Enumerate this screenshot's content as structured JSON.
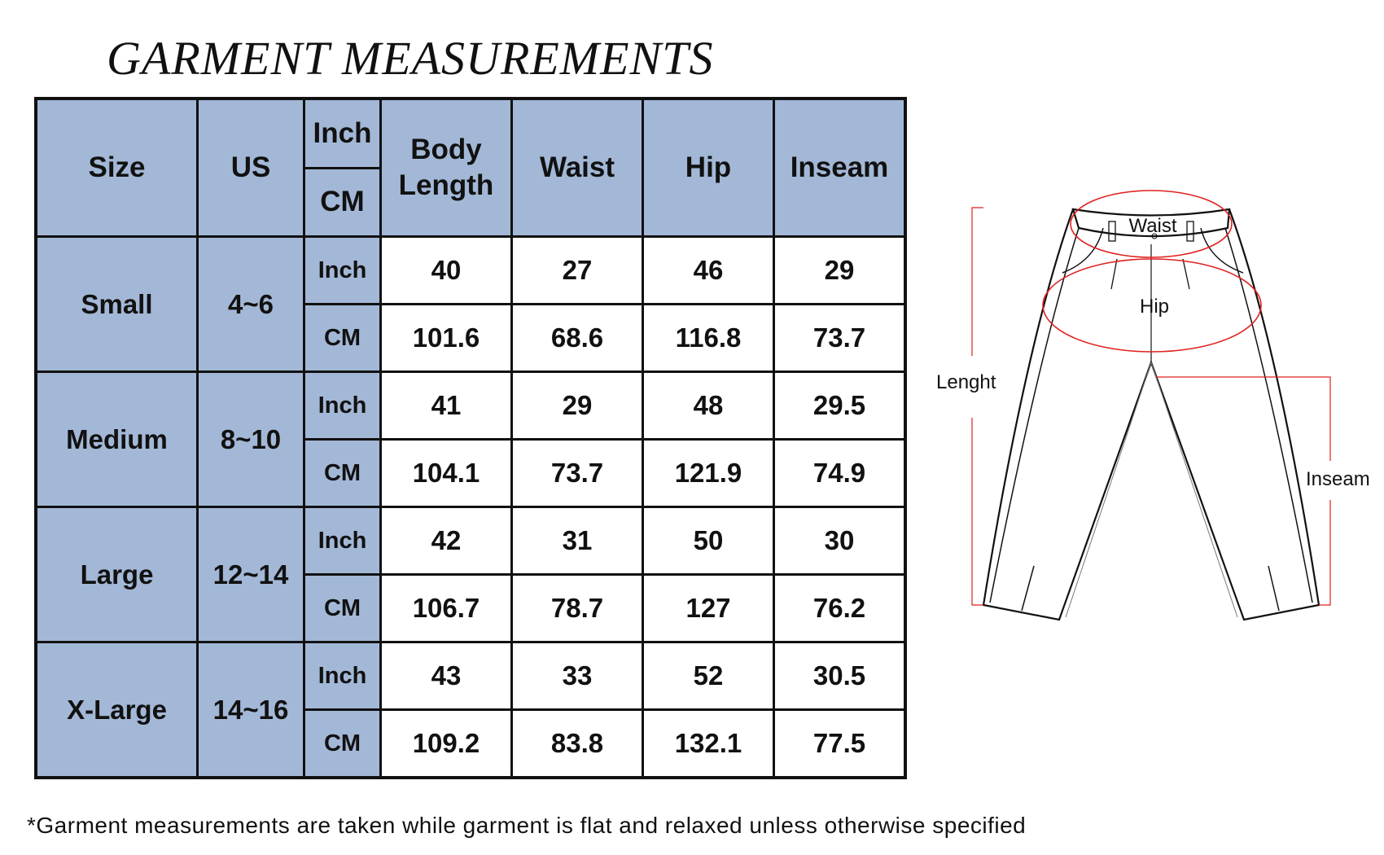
{
  "title": "GARMENT MEASUREMENTS",
  "table": {
    "headers": {
      "size": "Size",
      "us": "US",
      "unit_top": "Inch",
      "unit_bottom": "CM",
      "body_length_1": "Body",
      "body_length_2": "Length",
      "waist": "Waist",
      "hip": "Hip",
      "inseam": "Inseam"
    },
    "rows": [
      {
        "size": "Small",
        "us": "4~6",
        "inch": {
          "unit": "Inch",
          "body_length": "40",
          "waist": "27",
          "hip": "46",
          "inseam": "29"
        },
        "cm": {
          "unit": "CM",
          "body_length": "101.6",
          "waist": "68.6",
          "hip": "116.8",
          "inseam": "73.7"
        }
      },
      {
        "size": "Medium",
        "us": "8~10",
        "inch": {
          "unit": "Inch",
          "body_length": "41",
          "waist": "29",
          "hip": "48",
          "inseam": "29.5"
        },
        "cm": {
          "unit": "CM",
          "body_length": "104.1",
          "waist": "73.7",
          "hip": "121.9",
          "inseam": "74.9"
        }
      },
      {
        "size": "Large",
        "us": "12~14",
        "inch": {
          "unit": "Inch",
          "body_length": "42",
          "waist": "31",
          "hip": "50",
          "inseam": "30"
        },
        "cm": {
          "unit": "CM",
          "body_length": "106.7",
          "waist": "78.7",
          "hip": "127",
          "inseam": "76.2"
        }
      },
      {
        "size": "X-Large",
        "us": "14~16",
        "inch": {
          "unit": "Inch",
          "body_length": "43",
          "waist": "33",
          "hip": "52",
          "inseam": "30.5"
        },
        "cm": {
          "unit": "CM",
          "body_length": "109.2",
          "waist": "83.8",
          "hip": "132.1",
          "inseam": "77.5"
        }
      }
    ]
  },
  "diagram": {
    "waist": "Waist",
    "hip": "Hip",
    "length": "Lenght",
    "inseam": "Inseam"
  },
  "footnote": "*Garment measurements are taken while garment is flat and relaxed unless otherwise specified",
  "colors": {
    "header_bg": "#a3b8d6",
    "annotation": "#e02020"
  }
}
